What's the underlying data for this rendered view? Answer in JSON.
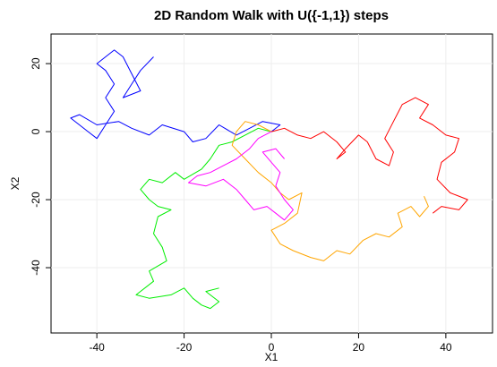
{
  "chart_data": {
    "type": "line",
    "title": "2D Random Walk with U({-1,1}) steps",
    "x_label": "X1",
    "y_label": "X2",
    "xlim": [
      -50.5,
      50.7
    ],
    "ylim": [
      -59.2,
      28.7
    ],
    "xticks": [
      -40,
      -20,
      0,
      20,
      40
    ],
    "yticks": [
      -40,
      -20,
      0,
      20
    ],
    "grid": true,
    "series": [
      {
        "color": "#0000ff",
        "x": [
          0,
          2,
          -2,
          -5,
          -8,
          -12,
          -15,
          -18,
          -20,
          -25,
          -28,
          -32,
          -35,
          -40,
          -44,
          -46,
          -42,
          -40,
          -38,
          -36,
          -38,
          -36,
          -38,
          -40,
          -36,
          -34,
          -32,
          -30,
          -34,
          -32,
          -30,
          -27
        ],
        "values": [
          0,
          2,
          3,
          1,
          -1,
          2,
          -2,
          -3,
          0,
          2,
          -1,
          1,
          3,
          2,
          5,
          4,
          0,
          -2,
          2,
          6,
          10,
          14,
          18,
          20,
          24,
          22,
          17,
          12,
          10,
          14,
          18,
          22
        ]
      },
      {
        "color": "#ff0000",
        "x": [
          0,
          3,
          6,
          9,
          12,
          15,
          17,
          15,
          17,
          20,
          22,
          24,
          27,
          28,
          26,
          28,
          30,
          33,
          36,
          34,
          37,
          40,
          43,
          42,
          39,
          38,
          41,
          45,
          43,
          39,
          37
        ],
        "values": [
          0,
          1,
          -1,
          -2,
          0,
          -3,
          -6,
          -8,
          -5,
          -1,
          -3,
          -8,
          -10,
          -6,
          -2,
          3,
          8,
          10,
          8,
          4,
          2,
          -1,
          -2,
          -6,
          -9,
          -14,
          -18,
          -20,
          -23,
          -22,
          -24
        ]
      },
      {
        "color": "#00ee00",
        "x": [
          0,
          -3,
          -6,
          -9,
          -12,
          -14,
          -16,
          -20,
          -22,
          -25,
          -28,
          -30,
          -28,
          -26,
          -23,
          -26,
          -27,
          -25,
          -24,
          -28,
          -27,
          -31,
          -28,
          -23,
          -20,
          -18,
          -16,
          -14,
          -12,
          -15,
          -12
        ],
        "values": [
          0,
          1,
          -1,
          -3,
          -4,
          -8,
          -11,
          -14,
          -12,
          -15,
          -14,
          -17,
          -20,
          -22,
          -23,
          -25,
          -30,
          -34,
          -38,
          -41,
          -44,
          -48,
          -49,
          -48,
          -46,
          -49,
          -51,
          -52,
          -50,
          -47,
          -46
        ]
      },
      {
        "color": "#ffa500",
        "x": [
          0,
          -3,
          -6,
          -8,
          -9,
          -6,
          -3,
          0,
          2,
          4,
          7,
          6,
          3,
          0,
          2,
          5,
          9,
          12,
          15,
          18,
          21,
          24,
          27,
          30,
          29,
          32,
          34,
          36,
          35
        ],
        "values": [
          0,
          2,
          3,
          0,
          -4,
          -8,
          -12,
          -15,
          -18,
          -20,
          -18,
          -24,
          -27,
          -29,
          -33,
          -35,
          -37,
          -38,
          -35,
          -36,
          -32,
          -30,
          -31,
          -28,
          -24,
          -22,
          -25,
          -22,
          -19
        ]
      },
      {
        "color": "#ff00ff",
        "x": [
          0,
          -3,
          -5,
          -8,
          -11,
          -14,
          -17,
          -19,
          -15,
          -11,
          -8,
          -6,
          -4,
          -1,
          1,
          3,
          5,
          3,
          1,
          2,
          0,
          -2,
          1,
          3
        ],
        "values": [
          0,
          -2,
          -5,
          -8,
          -10,
          -12,
          -13,
          -15,
          -16,
          -14,
          -17,
          -20,
          -23,
          -22,
          -24,
          -26,
          -23,
          -20,
          -16,
          -12,
          -9,
          -6,
          -5,
          -8
        ]
      }
    ]
  }
}
